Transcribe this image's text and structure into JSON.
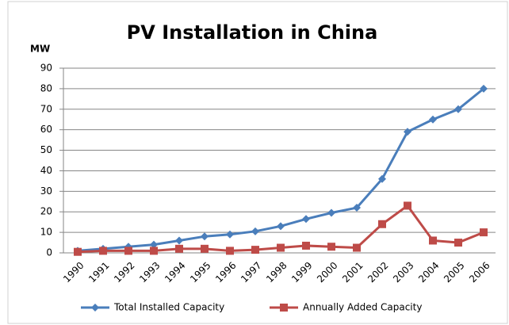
{
  "chart_data": {
    "type": "line",
    "title": "PV Installation in China",
    "y_label": "MW",
    "categories": [
      "1990",
      "1991",
      "1992",
      "1993",
      "1994",
      "1995",
      "1996",
      "1997",
      "1998",
      "1999",
      "2000",
      "2001",
      "2002",
      "2003",
      "2004",
      "2005",
      "2006"
    ],
    "series": [
      {
        "name": "Total Installed Capacity",
        "color": "#4a7ebb",
        "marker": "diamond",
        "values": [
          1,
          2,
          3,
          4,
          6,
          8,
          9,
          10.5,
          13,
          16.5,
          19.5,
          22,
          36,
          59,
          65,
          70,
          80
        ]
      },
      {
        "name": "Annually Added Capacity",
        "color": "#be4b48",
        "marker": "square",
        "values": [
          0.5,
          1,
          1,
          1,
          2,
          2,
          1,
          1.5,
          2.5,
          3.5,
          3,
          2.5,
          14,
          23,
          6,
          5,
          10
        ]
      }
    ],
    "ylim": [
      0,
      90
    ],
    "yticks": [
      0,
      10,
      20,
      30,
      40,
      50,
      60,
      70,
      80,
      90
    ],
    "grid": true,
    "legend": "bottom"
  }
}
